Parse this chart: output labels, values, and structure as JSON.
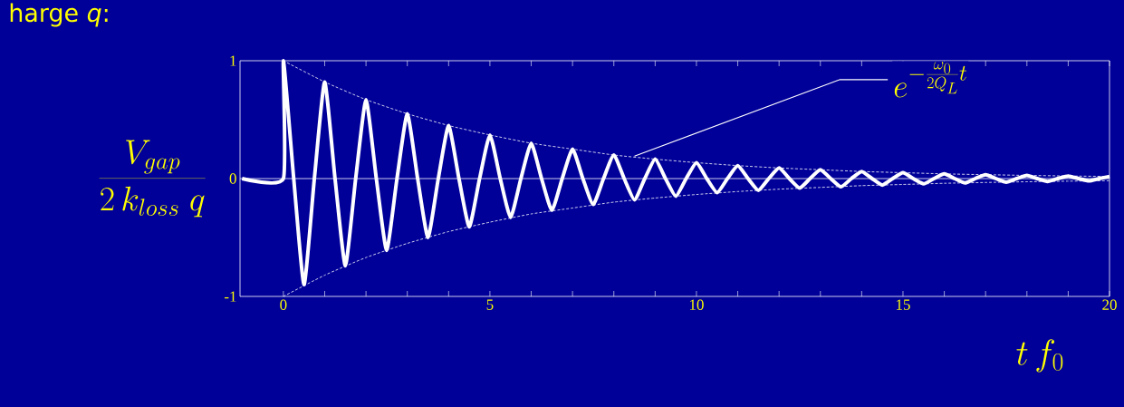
{
  "chart_data": {
    "type": "line",
    "title": "harge *q*:",
    "xlabel": "t\\, f_0",
    "ylabel": "\\frac{V_{gap}}{2\\,k_{loss}\\;q}",
    "xlim": [
      -1.05,
      20
    ],
    "ylim": [
      -1,
      1
    ],
    "xticks": [
      0,
      5,
      10,
      15,
      20
    ],
    "yticks": [
      -1,
      0,
      1
    ],
    "ref_lines": [
      {
        "axis": "y",
        "value": 0,
        "color": "#ffffff"
      }
    ],
    "annotations": [
      {
        "text": "e^{-\\frac{\\omega_0}{2Q_L}t}",
        "x": 8.5,
        "y": 0.19
      }
    ],
    "series": [
      {
        "color": "#ffffff",
        "line_style": "solid",
        "x": [
          -1,
          0,
          0,
          0.25,
          0.5,
          0.75,
          1,
          1.25,
          1.5,
          1.75,
          2,
          2.25,
          2.5,
          2.75,
          3,
          3.25,
          3.5,
          3.75,
          4,
          4.25,
          4.5,
          4.75,
          5,
          5.25,
          5.5,
          5.75,
          6,
          6.25,
          6.5,
          6.75,
          7,
          7.25,
          7.5,
          7.75,
          8,
          8.25,
          8.5,
          8.75,
          9,
          9.25,
          9.5,
          9.75,
          10,
          10.25,
          10.5,
          10.75,
          11,
          11.25,
          11.5,
          11.75,
          12,
          12.25,
          12.5,
          12.75,
          13,
          13.25,
          13.5,
          13.75,
          14,
          14.25,
          14.5,
          14.75,
          15,
          15.25,
          15.5,
          15.75,
          16,
          16.25,
          16.5,
          16.75,
          17,
          17.25,
          17.5,
          17.75,
          18,
          18.25,
          18.5,
          18.75,
          19,
          19.25,
          19.5,
          19.75,
          20
        ],
        "values": [
          0,
          0,
          1,
          0,
          -0.9,
          0,
          0.82,
          0,
          -0.74,
          0,
          0.67,
          0,
          -0.61,
          0,
          0.55,
          0,
          -0.5,
          0,
          0.45,
          0,
          -0.41,
          0,
          0.37,
          0,
          -0.33,
          0,
          0.3,
          0,
          -0.27,
          0,
          0.25,
          0,
          -0.22,
          0,
          0.2,
          0,
          -0.18,
          0,
          0.165,
          0,
          -0.15,
          0,
          0.135,
          0,
          -0.12,
          0,
          0.11,
          0,
          -0.1,
          0,
          0.09,
          0,
          -0.08,
          0,
          0.075,
          0,
          -0.07,
          0,
          0.06,
          0,
          -0.055,
          0,
          0.05,
          0,
          -0.045,
          0,
          0.04,
          0,
          -0.037,
          0,
          0.033,
          0,
          -0.03,
          0,
          0.027,
          0,
          -0.025,
          0,
          0.022,
          0,
          -0.02,
          0,
          0.018
        ]
      },
      {
        "color": "#ffffff",
        "line_style": "dashed",
        "x": [
          0,
          1,
          2,
          3,
          4,
          5,
          6,
          7,
          8,
          9,
          10,
          11,
          12,
          13,
          14,
          15,
          16,
          17,
          18,
          19,
          20
        ],
        "values": [
          1,
          0.82,
          0.67,
          0.55,
          0.45,
          0.37,
          0.3,
          0.25,
          0.2,
          0.165,
          0.135,
          0.11,
          0.09,
          0.075,
          0.06,
          0.05,
          0.04,
          0.033,
          0.027,
          0.022,
          0.018
        ]
      },
      {
        "color": "#ffffff",
        "line_style": "dashed",
        "x": [
          0,
          1,
          2,
          3,
          4,
          5,
          6,
          7,
          8,
          9,
          10,
          11,
          12,
          13,
          14,
          15,
          16,
          17,
          18,
          19,
          20
        ],
        "values": [
          -1,
          -0.82,
          -0.67,
          -0.55,
          -0.45,
          -0.37,
          -0.3,
          -0.25,
          -0.2,
          -0.165,
          -0.135,
          -0.11,
          -0.09,
          -0.075,
          -0.06,
          -0.05,
          -0.04,
          -0.033,
          -0.027,
          -0.022,
          -0.018
        ]
      }
    ]
  }
}
